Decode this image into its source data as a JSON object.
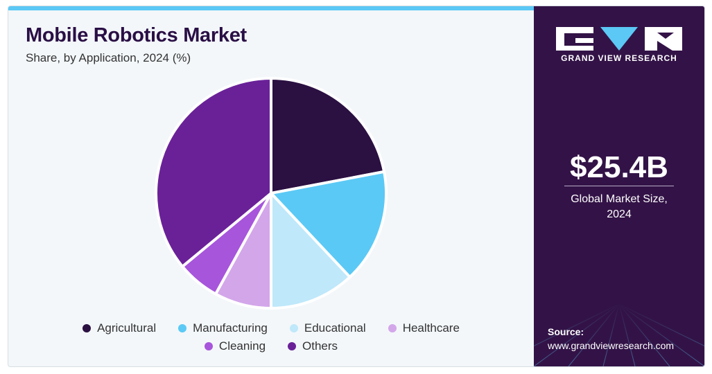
{
  "header": {
    "title": "Mobile Robotics Market",
    "subtitle": "Share, by Application, 2024 (%)"
  },
  "sidebar": {
    "logo_text": "GRAND VIEW RESEARCH",
    "market_value": "$25.4B",
    "market_label_line1": "Global Market Size,",
    "market_label_line2": "2024",
    "source_label": "Source:",
    "source_url": "www.grandviewresearch.com"
  },
  "colors": {
    "accent_bar": "#5bc8f5",
    "sidebar_bg": "#331347",
    "title": "#2a0f45"
  },
  "chart_data": {
    "type": "pie",
    "title": "Mobile Robotics Market",
    "subtitle": "Share, by Application, 2024 (%)",
    "legend_position": "bottom",
    "labels": [
      "Agricultural",
      "Manufacturing",
      "Educational",
      "Healthcare",
      "Cleaning",
      "Others"
    ],
    "values": [
      22,
      16,
      12,
      8,
      6,
      36
    ],
    "colors": [
      "#2b1042",
      "#5bc9f5",
      "#bfe8fa",
      "#d3a6ea",
      "#a755db",
      "#6a2198"
    ]
  }
}
